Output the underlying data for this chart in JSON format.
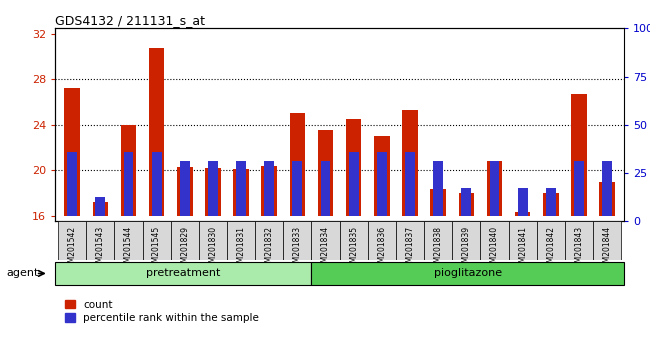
{
  "title": "GDS4132 / 211131_s_at",
  "samples": [
    "GSM201542",
    "GSM201543",
    "GSM201544",
    "GSM201545",
    "GSM201829",
    "GSM201830",
    "GSM201831",
    "GSM201832",
    "GSM201833",
    "GSM201834",
    "GSM201835",
    "GSM201836",
    "GSM201837",
    "GSM201838",
    "GSM201839",
    "GSM201840",
    "GSM201841",
    "GSM201842",
    "GSM201843",
    "GSM201844"
  ],
  "counts": [
    27.2,
    17.2,
    24.0,
    30.8,
    20.3,
    20.2,
    20.1,
    20.4,
    25.0,
    23.5,
    24.5,
    23.0,
    25.3,
    18.3,
    18.0,
    20.8,
    16.3,
    18.0,
    26.7,
    19.0
  ],
  "pct_vals": [
    35,
    10,
    35,
    35,
    30,
    30,
    30,
    30,
    30,
    30,
    35,
    35,
    35,
    30,
    15,
    30,
    15,
    15,
    30,
    30
  ],
  "pretreatment_count": 9,
  "pioglitazone_count": 11,
  "baseline": 16,
  "ymin": 15.5,
  "ymax": 32.5,
  "yticks_left": [
    16,
    20,
    24,
    28,
    32
  ],
  "grid_lines": [
    20,
    24,
    28
  ],
  "yticks_right": [
    0,
    25,
    50,
    75,
    100
  ],
  "bar_color": "#cc2200",
  "blue_color": "#3333cc",
  "bg_plot": "#ffffff",
  "tick_bg": "#d8d8d8",
  "bg_pretreatment": "#aaeaaa",
  "bg_pioglitazone": "#55cc55",
  "agent_label": "agent",
  "pretreatment_label": "pretreatment",
  "pioglitazone_label": "pioglitazone",
  "legend_count": "count",
  "legend_percentile": "percentile rank within the sample",
  "bar_width": 0.55,
  "blue_bar_width": 0.35,
  "blue_bar_height": 0.55
}
